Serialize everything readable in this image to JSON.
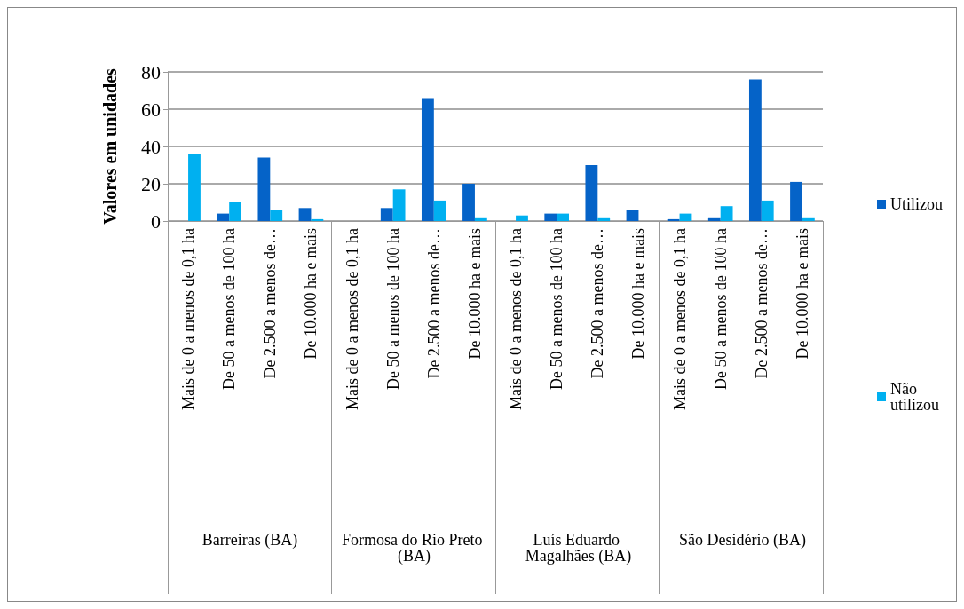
{
  "chart_data": {
    "type": "bar",
    "ylabel": "Valores em unidades",
    "categories": [
      "Mais de 0 a menos de 0,1 ha",
      "De 50 a menos de 100 ha",
      "De 2.500 a menos de…",
      "De 10.000 ha e mais",
      "Mais de 0 a menos de 0,1 ha",
      "De 50 a menos de 100 ha",
      "De 2.500 a menos de…",
      "De 10.000 ha e mais",
      "Mais de 0 a menos de 0,1 ha",
      "De 50 a menos de 100 ha",
      "De 2.500 a menos de…",
      "De 10.000 ha e mais",
      "Mais de 0 a menos de 0,1 ha",
      "De 50 a menos de 100 ha",
      "De 2.500 a menos de…",
      "De 10.000 ha e mais"
    ],
    "series": [
      {
        "name": "Utilizou",
        "color": "#0563c8",
        "values": [
          0,
          4,
          34,
          7,
          0,
          7,
          66,
          20,
          0,
          4,
          30,
          6,
          1,
          2,
          76,
          21
        ]
      },
      {
        "name": "Não utilizou",
        "color": "#00b0f0",
        "values": [
          36,
          10,
          6,
          1,
          0,
          17,
          11,
          2,
          3,
          4,
          2,
          0,
          4,
          8,
          11,
          2
        ]
      }
    ],
    "annotations": [
      "Barreiras (BA)",
      "Formosa do Rio Preto (BA)",
      "Luís Eduardo Magalhães (BA)",
      "São Desidério (BA)"
    ],
    "ylim": [
      0,
      80
    ],
    "yticks": [
      0,
      20,
      40,
      60,
      80
    ],
    "grid": "y",
    "legend": "right"
  }
}
